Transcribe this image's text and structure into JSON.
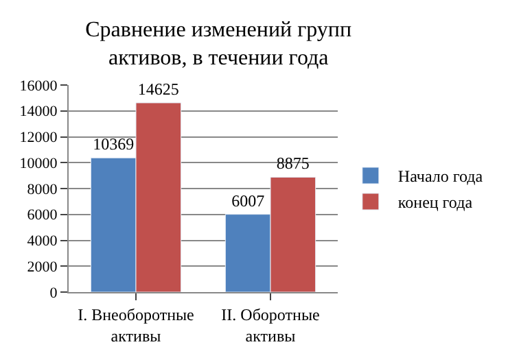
{
  "chart_data": {
    "type": "bar",
    "title": "Сравнение изменений групп\nактивов, в течении года",
    "categories": [
      "I. Внеоборотные\nактивы",
      "II. Оборотные\nактивы"
    ],
    "series": [
      {
        "name": "Начало года",
        "color": "#4f81bd",
        "values": [
          10369,
          6007
        ]
      },
      {
        "name": "конец года",
        "color": "#c0504d",
        "values": [
          14625,
          8875
        ]
      }
    ],
    "ylim": [
      0,
      16000
    ],
    "yticks": [
      0,
      2000,
      4000,
      6000,
      8000,
      10000,
      12000,
      14000,
      16000
    ],
    "grid": "y",
    "legend": "right",
    "data_labels": true
  }
}
